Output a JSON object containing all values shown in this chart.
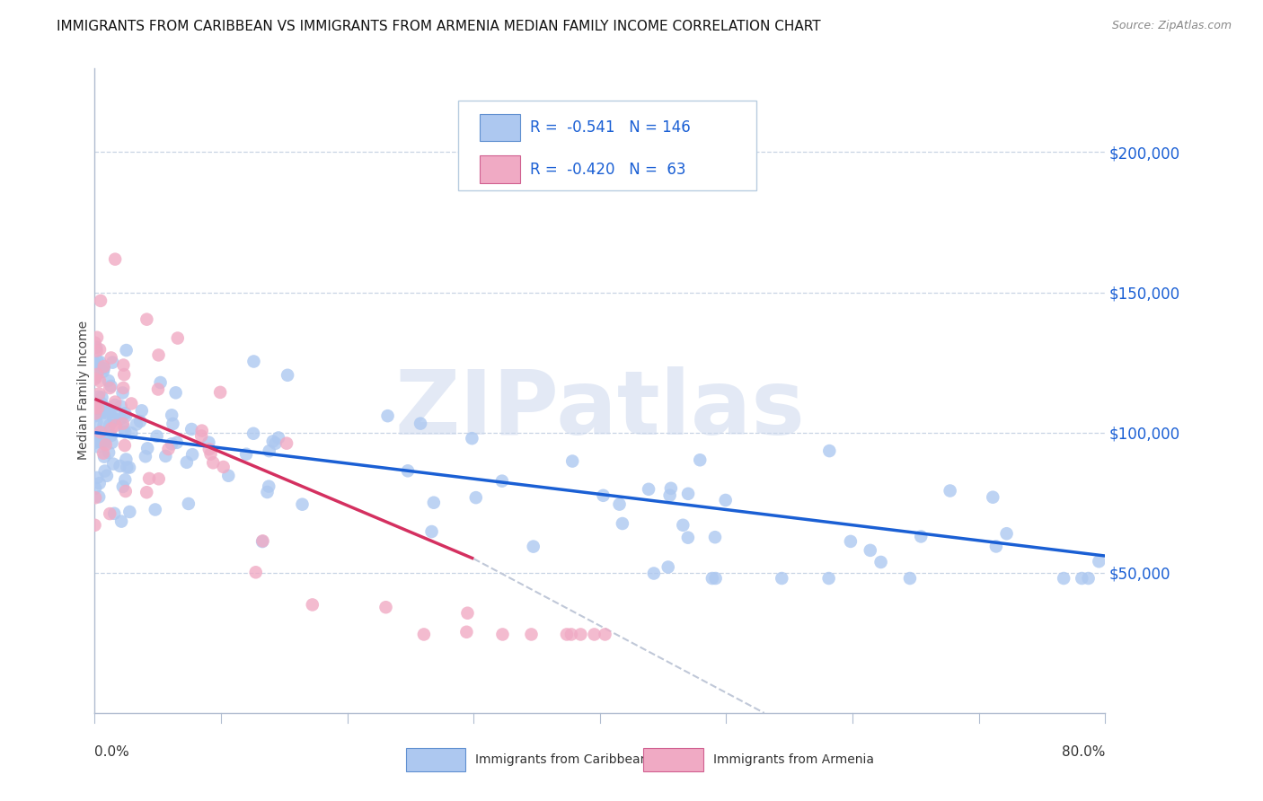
{
  "title": "IMMIGRANTS FROM CARIBBEAN VS IMMIGRANTS FROM ARMENIA MEDIAN FAMILY INCOME CORRELATION CHART",
  "source": "Source: ZipAtlas.com",
  "ylabel": "Median Family Income",
  "ytick_labels": [
    "$50,000",
    "$100,000",
    "$150,000",
    "$200,000"
  ],
  "ytick_values": [
    50000,
    100000,
    150000,
    200000
  ],
  "ylim": [
    0,
    230000
  ],
  "xlim": [
    0.0,
    0.8
  ],
  "carib_R": "-0.541",
  "carib_N": "146",
  "arm_R": "-0.420",
  "arm_N": "63",
  "carib_label": "Immigrants from Caribbean",
  "arm_label": "Immigrants from Armenia",
  "caribbean_fill": "#adc8f0",
  "armenia_fill": "#f0aac4",
  "caribbean_edge": "#6090d0",
  "armenia_edge": "#d06090",
  "trend_carib_color": "#1a5fd4",
  "trend_arm_color": "#d43060",
  "trend_dashed_color": "#c0c8d8",
  "watermark": "ZIPatlas",
  "watermark_color": "#ccd8ee",
  "background_color": "#ffffff",
  "grid_color": "#c8d4e4",
  "legend_box_color": "#dde8f4",
  "legend_text_color": "#1a5fd4",
  "axis_color": "#b0bcd0",
  "title_fontsize": 11,
  "source_fontsize": 9,
  "ytick_fontsize": 12,
  "ylabel_fontsize": 10
}
